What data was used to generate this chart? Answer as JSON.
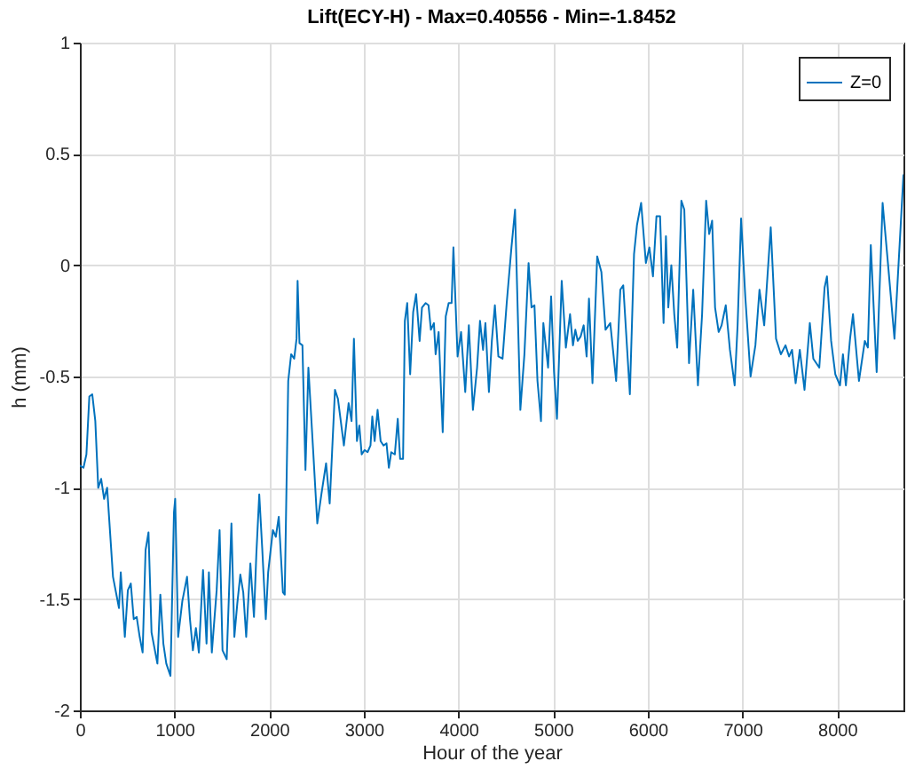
{
  "chart_data": {
    "type": "line",
    "title": "Lift(ECY-H) - Max=0.40556 - Min=-1.8452",
    "xlabel": "Hour of the year",
    "ylabel": "h (mm)",
    "x": [
      0,
      38,
      69,
      100,
      131,
      163,
      194,
      225,
      256,
      288,
      350,
      413,
      432,
      475,
      507,
      538,
      569,
      600,
      632,
      663,
      694,
      725,
      757,
      819,
      850,
      882,
      913,
      957,
      994,
      1007,
      1038,
      1082,
      1132,
      1163,
      1194,
      1226,
      1257,
      1301,
      1338,
      1363,
      1394,
      1445,
      1476,
      1507,
      1551,
      1601,
      1632,
      1663,
      1695,
      1726,
      1757,
      1801,
      1839,
      1864,
      1895,
      1926,
      1964,
      1989,
      2039,
      2070,
      2101,
      2145,
      2164,
      2201,
      2232,
      2264,
      2289,
      2300,
      2320,
      2351,
      2383,
      2414,
      2464,
      2508,
      2551,
      2601,
      2639,
      2695,
      2726,
      2789,
      2839,
      2870,
      2895,
      2927,
      2952,
      2977,
      3008,
      3039,
      3070,
      3089,
      3114,
      3145,
      3177,
      3208,
      3239,
      3264,
      3289,
      3327,
      3358,
      3383,
      3414,
      3433,
      3458,
      3489,
      3521,
      3552,
      3589,
      3614,
      3652,
      3683,
      3708,
      3740,
      3758,
      3790,
      3833,
      3865,
      3896,
      3927,
      3946,
      3990,
      4027,
      4071,
      4109,
      4152,
      4196,
      4227,
      4259,
      4284,
      4321,
      4352,
      4384,
      4421,
      4465,
      4509,
      4559,
      4597,
      4653,
      4696,
      4740,
      4771,
      4802,
      4834,
      4871,
      4896,
      4946,
      4978,
      5009,
      5040,
      5090,
      5134,
      5178,
      5209,
      5234,
      5259,
      5290,
      5322,
      5353,
      5378,
      5415,
      5465,
      5509,
      5553,
      5603,
      5665,
      5709,
      5740,
      5810,
      5854,
      5885,
      5929,
      5979,
      6016,
      6054,
      6091,
      6129,
      6166,
      6191,
      6216,
      6248,
      6279,
      6310,
      6354,
      6385,
      6435,
      6479,
      6529,
      6573,
      6616,
      6648,
      6679,
      6710,
      6748,
      6779,
      6823,
      6867,
      6917,
      6948,
      6985,
      7029,
      7085,
      7136,
      7179,
      7229,
      7298,
      7354,
      7405,
      7454,
      7492,
      7523,
      7561,
      7605,
      7655,
      7711,
      7748,
      7811,
      7867,
      7892,
      7936,
      7980,
      8030,
      8061,
      8092,
      8136,
      8167,
      8230,
      8292,
      8324,
      8355,
      8417,
      8480,
      8542,
      8605,
      8700
    ],
    "series": [
      {
        "name": "Z=0",
        "color": "#0072bd",
        "values": [
          -0.9,
          -0.91,
          -0.85,
          -0.59,
          -0.58,
          -0.7,
          -1.0,
          -0.96,
          -1.05,
          -1.0,
          -1.4,
          -1.54,
          -1.38,
          -1.67,
          -1.46,
          -1.43,
          -1.59,
          -1.58,
          -1.67,
          -1.74,
          -1.28,
          -1.2,
          -1.65,
          -1.79,
          -1.48,
          -1.7,
          -1.79,
          -1.845,
          -1.11,
          -1.05,
          -1.67,
          -1.51,
          -1.4,
          -1.59,
          -1.73,
          -1.63,
          -1.74,
          -1.37,
          -1.7,
          -1.38,
          -1.74,
          -1.46,
          -1.19,
          -1.73,
          -1.77,
          -1.16,
          -1.67,
          -1.52,
          -1.39,
          -1.47,
          -1.67,
          -1.34,
          -1.58,
          -1.3,
          -1.03,
          -1.27,
          -1.59,
          -1.38,
          -1.19,
          -1.22,
          -1.13,
          -1.47,
          -1.48,
          -0.52,
          -0.4,
          -0.42,
          -0.33,
          -0.07,
          -0.35,
          -0.36,
          -0.92,
          -0.46,
          -0.83,
          -1.16,
          -1.03,
          -0.89,
          -1.07,
          -0.56,
          -0.6,
          -0.81,
          -0.62,
          -0.7,
          -0.33,
          -0.79,
          -0.72,
          -0.85,
          -0.83,
          -0.84,
          -0.81,
          -0.68,
          -0.79,
          -0.65,
          -0.79,
          -0.81,
          -0.8,
          -0.91,
          -0.84,
          -0.85,
          -0.69,
          -0.87,
          -0.87,
          -0.25,
          -0.17,
          -0.49,
          -0.21,
          -0.13,
          -0.34,
          -0.19,
          -0.17,
          -0.18,
          -0.29,
          -0.26,
          -0.4,
          -0.3,
          -0.75,
          -0.23,
          -0.17,
          -0.17,
          0.08,
          -0.41,
          -0.3,
          -0.57,
          -0.27,
          -0.65,
          -0.46,
          -0.25,
          -0.38,
          -0.26,
          -0.57,
          -0.34,
          -0.18,
          -0.41,
          -0.42,
          -0.17,
          0.08,
          0.25,
          -0.65,
          -0.4,
          0.01,
          -0.19,
          -0.18,
          -0.52,
          -0.7,
          -0.26,
          -0.46,
          -0.14,
          -0.48,
          -0.69,
          -0.07,
          -0.37,
          -0.22,
          -0.36,
          -0.29,
          -0.34,
          -0.32,
          -0.27,
          -0.41,
          -0.15,
          -0.53,
          0.04,
          -0.03,
          -0.29,
          -0.26,
          -0.52,
          -0.11,
          -0.09,
          -0.58,
          0.05,
          0.18,
          0.28,
          0.01,
          0.08,
          -0.05,
          0.22,
          0.22,
          -0.26,
          0.13,
          -0.19,
          0.0,
          -0.22,
          -0.37,
          0.29,
          0.25,
          -0.44,
          -0.11,
          -0.54,
          -0.22,
          0.29,
          0.14,
          0.2,
          -0.19,
          -0.3,
          -0.27,
          -0.18,
          -0.38,
          -0.54,
          -0.27,
          0.21,
          -0.14,
          -0.5,
          -0.36,
          -0.11,
          -0.27,
          0.17,
          -0.33,
          -0.4,
          -0.36,
          -0.41,
          -0.38,
          -0.53,
          -0.38,
          -0.56,
          -0.26,
          -0.42,
          -0.46,
          -0.1,
          -0.05,
          -0.34,
          -0.49,
          -0.54,
          -0.4,
          -0.54,
          -0.33,
          -0.22,
          -0.52,
          -0.34,
          -0.37,
          0.09,
          -0.48,
          0.28,
          -0.02,
          -0.33,
          0.405
        ]
      }
    ],
    "xlim": [
      0,
      8700
    ],
    "ylim": [
      -2,
      1
    ],
    "xticks": [
      0,
      1000,
      2000,
      3000,
      4000,
      5000,
      6000,
      7000,
      8000
    ],
    "yticks": [
      -2,
      -1.5,
      -1,
      -0.5,
      0,
      0.5,
      1
    ],
    "grid": true,
    "legend": "top right",
    "line_style": "solid"
  }
}
